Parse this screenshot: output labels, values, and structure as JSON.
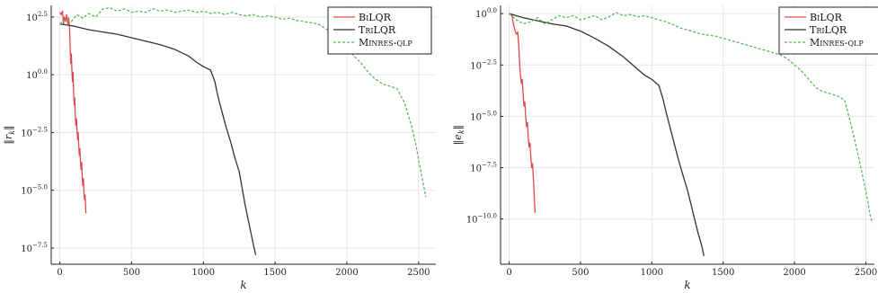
{
  "chart_data": [
    {
      "type": "line",
      "xlabel": "k",
      "ylabel": "‖r_k‖",
      "yscale": "log",
      "xlim": [
        -60,
        2620
      ],
      "ylim": [
        -8.2,
        3.0
      ],
      "xticks": [
        0,
        500,
        1000,
        1500,
        2000,
        2500
      ],
      "yticks": [
        2.5,
        0.0,
        -2.5,
        -5.0,
        -7.5
      ],
      "ytick_labels": [
        "2.5",
        "0.0",
        "−2.5",
        "−5.0",
        "−7.5"
      ],
      "grid": true,
      "legend": "top-right",
      "series": [
        {
          "name": "BiLQR",
          "color": "#e0474c",
          "dash": "solid",
          "points": [
            [
              0,
              2.7
            ],
            [
              10,
              2.6
            ],
            [
              18,
              2.75
            ],
            [
              25,
              2.2
            ],
            [
              32,
              2.5
            ],
            [
              40,
              2.3
            ],
            [
              48,
              2.6
            ],
            [
              55,
              2.2
            ],
            [
              62,
              2.45
            ],
            [
              68,
              2.0
            ],
            [
              72,
              1.2
            ],
            [
              76,
              0.5
            ],
            [
              80,
              0.9
            ],
            [
              84,
              0.2
            ],
            [
              88,
              -0.3
            ],
            [
              92,
              0.1
            ],
            [
              96,
              -0.8
            ],
            [
              100,
              -1.3
            ],
            [
              104,
              -1.0
            ],
            [
              108,
              -1.8
            ],
            [
              112,
              -2.2
            ],
            [
              116,
              -1.9
            ],
            [
              120,
              -2.4
            ],
            [
              124,
              -2.8
            ],
            [
              128,
              -2.5
            ],
            [
              132,
              -3.1
            ],
            [
              136,
              -3.5
            ],
            [
              140,
              -3.2
            ],
            [
              144,
              -3.8
            ],
            [
              148,
              -4.1
            ],
            [
              152,
              -3.8
            ],
            [
              156,
              -4.4
            ],
            [
              160,
              -4.8
            ],
            [
              164,
              -4.5
            ],
            [
              168,
              -5.1
            ],
            [
              172,
              -5.4
            ],
            [
              176,
              -5.2
            ],
            [
              180,
              -5.7
            ],
            [
              182,
              -6.0
            ]
          ]
        },
        {
          "name": "TriLQR",
          "color": "#333333",
          "dash": "solid",
          "points": [
            [
              0,
              2.2
            ],
            [
              100,
              2.1
            ],
            [
              200,
              1.95
            ],
            [
              300,
              1.85
            ],
            [
              400,
              1.75
            ],
            [
              500,
              1.6
            ],
            [
              600,
              1.45
            ],
            [
              700,
              1.3
            ],
            [
              800,
              1.1
            ],
            [
              900,
              0.8
            ],
            [
              950,
              0.55
            ],
            [
              1000,
              0.35
            ],
            [
              1050,
              0.2
            ],
            [
              1080,
              -0.3
            ],
            [
              1100,
              -0.9
            ],
            [
              1130,
              -1.6
            ],
            [
              1160,
              -2.3
            ],
            [
              1190,
              -2.9
            ],
            [
              1220,
              -3.6
            ],
            [
              1250,
              -4.2
            ],
            [
              1270,
              -4.9
            ],
            [
              1290,
              -5.6
            ],
            [
              1310,
              -6.2
            ],
            [
              1330,
              -6.8
            ],
            [
              1350,
              -7.4
            ],
            [
              1365,
              -7.8
            ]
          ]
        },
        {
          "name": "Minres-qlp",
          "color": "#5cb85c",
          "dash": "dashed",
          "points": [
            [
              0,
              2.2
            ],
            [
              40,
              2.4
            ],
            [
              80,
              2.3
            ],
            [
              120,
              2.6
            ],
            [
              160,
              2.45
            ],
            [
              200,
              2.65
            ],
            [
              250,
              2.5
            ],
            [
              300,
              2.85
            ],
            [
              350,
              2.9
            ],
            [
              400,
              2.75
            ],
            [
              450,
              2.85
            ],
            [
              500,
              2.7
            ],
            [
              550,
              2.75
            ],
            [
              600,
              2.7
            ],
            [
              650,
              2.85
            ],
            [
              700,
              2.75
            ],
            [
              750,
              2.8
            ],
            [
              800,
              2.7
            ],
            [
              850,
              2.75
            ],
            [
              900,
              2.8
            ],
            [
              950,
              2.7
            ],
            [
              1000,
              2.75
            ],
            [
              1050,
              2.65
            ],
            [
              1100,
              2.7
            ],
            [
              1150,
              2.6
            ],
            [
              1200,
              2.7
            ],
            [
              1250,
              2.6
            ],
            [
              1300,
              2.55
            ],
            [
              1350,
              2.6
            ],
            [
              1400,
              2.5
            ],
            [
              1450,
              2.55
            ],
            [
              1500,
              2.5
            ],
            [
              1550,
              2.4
            ],
            [
              1600,
              2.45
            ],
            [
              1650,
              2.35
            ],
            [
              1700,
              2.3
            ],
            [
              1750,
              2.25
            ],
            [
              1800,
              2.2
            ],
            [
              1850,
              2.0
            ],
            [
              1900,
              1.8
            ],
            [
              1950,
              1.6
            ],
            [
              2000,
              1.2
            ],
            [
              2050,
              0.8
            ],
            [
              2100,
              0.5
            ],
            [
              2150,
              0.1
            ],
            [
              2200,
              -0.2
            ],
            [
              2250,
              -0.4
            ],
            [
              2300,
              -0.5
            ],
            [
              2350,
              -0.6
            ],
            [
              2400,
              -1.2
            ],
            [
              2450,
              -2.2
            ],
            [
              2480,
              -3.0
            ],
            [
              2510,
              -4.0
            ],
            [
              2535,
              -4.8
            ],
            [
              2550,
              -5.3
            ]
          ]
        }
      ]
    },
    {
      "type": "line",
      "xlabel": "k",
      "ylabel": "‖e_k‖",
      "yscale": "log",
      "xlim": [
        -60,
        2560
      ],
      "ylim": [
        -12.2,
        0.4
      ],
      "xticks": [
        0,
        500,
        1000,
        1500,
        2000,
        2500
      ],
      "yticks": [
        0.0,
        -2.5,
        -5.0,
        -7.5,
        -10.0
      ],
      "ytick_labels": [
        "0.0",
        "−2.5",
        "−5.0",
        "−7.5",
        "−10.0"
      ],
      "grid": true,
      "legend": "top-right",
      "series": [
        {
          "name": "BiLQR",
          "color": "#e0474c",
          "dash": "solid",
          "points": [
            [
              0,
              0.0
            ],
            [
              20,
              -0.1
            ],
            [
              30,
              -0.5
            ],
            [
              40,
              -0.8
            ],
            [
              50,
              -1.0
            ],
            [
              60,
              -0.9
            ],
            [
              68,
              -1.6
            ],
            [
              74,
              -2.5
            ],
            [
              80,
              -3.0
            ],
            [
              86,
              -3.4
            ],
            [
              92,
              -3.2
            ],
            [
              98,
              -3.9
            ],
            [
              104,
              -4.5
            ],
            [
              110,
              -4.3
            ],
            [
              116,
              -5.0
            ],
            [
              122,
              -5.5
            ],
            [
              128,
              -5.3
            ],
            [
              134,
              -6.0
            ],
            [
              140,
              -6.5
            ],
            [
              146,
              -6.3
            ],
            [
              152,
              -7.0
            ],
            [
              158,
              -7.5
            ],
            [
              164,
              -7.3
            ],
            [
              170,
              -8.0
            ],
            [
              174,
              -8.6
            ],
            [
              178,
              -9.2
            ],
            [
              182,
              -9.7
            ]
          ]
        },
        {
          "name": "TriLQR",
          "color": "#333333",
          "dash": "solid",
          "points": [
            [
              0,
              0.0
            ],
            [
              100,
              -0.2
            ],
            [
              200,
              -0.35
            ],
            [
              300,
              -0.5
            ],
            [
              400,
              -0.6
            ],
            [
              500,
              -0.85
            ],
            [
              600,
              -1.2
            ],
            [
              700,
              -1.6
            ],
            [
              800,
              -2.1
            ],
            [
              900,
              -2.7
            ],
            [
              950,
              -3.0
            ],
            [
              1000,
              -3.2
            ],
            [
              1050,
              -3.5
            ],
            [
              1080,
              -4.2
            ],
            [
              1100,
              -4.8
            ],
            [
              1130,
              -5.6
            ],
            [
              1160,
              -6.4
            ],
            [
              1190,
              -7.2
            ],
            [
              1220,
              -7.9
            ],
            [
              1250,
              -8.6
            ],
            [
              1275,
              -9.3
            ],
            [
              1300,
              -10.0
            ],
            [
              1325,
              -10.7
            ],
            [
              1350,
              -11.3
            ],
            [
              1365,
              -11.8
            ]
          ]
        },
        {
          "name": "Minres-qlp",
          "color": "#5cb85c",
          "dash": "dashed",
          "points": [
            [
              0,
              0.0
            ],
            [
              50,
              -0.3
            ],
            [
              100,
              -0.5
            ],
            [
              150,
              -0.4
            ],
            [
              200,
              -0.2
            ],
            [
              250,
              -0.5
            ],
            [
              300,
              -0.3
            ],
            [
              350,
              -0.1
            ],
            [
              400,
              -0.2
            ],
            [
              450,
              -0.1
            ],
            [
              500,
              -0.3
            ],
            [
              550,
              -0.2
            ],
            [
              600,
              -0.1
            ],
            [
              650,
              -0.3
            ],
            [
              700,
              -0.15
            ],
            [
              750,
              0.05
            ],
            [
              800,
              -0.1
            ],
            [
              850,
              -0.05
            ],
            [
              900,
              -0.15
            ],
            [
              950,
              -0.1
            ],
            [
              1000,
              -0.2
            ],
            [
              1050,
              -0.3
            ],
            [
              1100,
              -0.4
            ],
            [
              1150,
              -0.55
            ],
            [
              1200,
              -0.7
            ],
            [
              1250,
              -0.8
            ],
            [
              1300,
              -0.9
            ],
            [
              1350,
              -1.0
            ],
            [
              1400,
              -1.05
            ],
            [
              1450,
              -1.1
            ],
            [
              1500,
              -1.2
            ],
            [
              1550,
              -1.3
            ],
            [
              1600,
              -1.4
            ],
            [
              1650,
              -1.5
            ],
            [
              1700,
              -1.6
            ],
            [
              1750,
              -1.7
            ],
            [
              1800,
              -1.8
            ],
            [
              1850,
              -1.9
            ],
            [
              1900,
              -2.0
            ],
            [
              1950,
              -2.2
            ],
            [
              2000,
              -2.5
            ],
            [
              2050,
              -2.8
            ],
            [
              2100,
              -3.2
            ],
            [
              2150,
              -3.6
            ],
            [
              2200,
              -3.8
            ],
            [
              2250,
              -3.9
            ],
            [
              2300,
              -4.0
            ],
            [
              2350,
              -4.2
            ],
            [
              2400,
              -5.5
            ],
            [
              2450,
              -7.0
            ],
            [
              2480,
              -8.0
            ],
            [
              2510,
              -9.0
            ],
            [
              2530,
              -9.8
            ],
            [
              2545,
              -10.2
            ]
          ]
        }
      ]
    }
  ]
}
